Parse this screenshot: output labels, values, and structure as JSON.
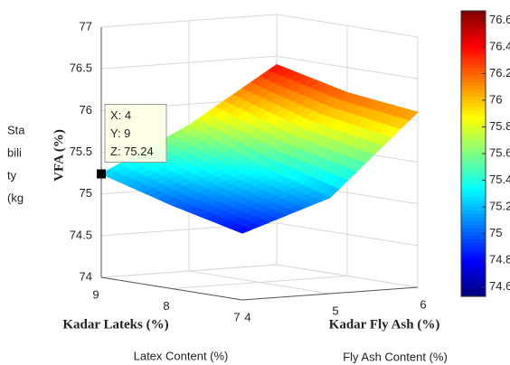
{
  "chart_data": {
    "type": "surface",
    "zlabel": "VFA (%)",
    "ylabel": "Kadar Lateks (%)",
    "xlabel": "Kadar Fly Ash (%)",
    "x": [
      4,
      5,
      6
    ],
    "y": [
      9,
      8,
      7
    ],
    "values": [
      [
        75.24,
        75.75,
        76.4
      ],
      [
        75.0,
        75.4,
        76.2
      ],
      [
        74.8,
        75.15,
        76.1
      ]
    ],
    "xlim": [
      4,
      6
    ],
    "ylim": [
      7,
      9
    ],
    "zlim": [
      74,
      77
    ],
    "xticks": [
      4,
      5,
      6
    ],
    "yticks": [
      9,
      8,
      7
    ],
    "zticks": [
      74,
      74.5,
      75,
      75.5,
      76,
      76.5,
      77
    ],
    "colormap": "jet",
    "clim": [
      74.53,
      76.67
    ],
    "cticks": [
      74.6,
      74.8,
      75,
      75.2,
      75.4,
      75.6,
      75.8,
      76,
      76.2,
      76.4,
      76.6
    ],
    "grid": true,
    "datatip": [
      "X: 4",
      "Y: 9",
      "Z: 75.24"
    ]
  },
  "annotations": {
    "left_text": [
      "Sta",
      "bili",
      "ty",
      "(kg"
    ],
    "x_caption": "Latex Content (%)",
    "y_caption": "Fly Ash Content (%)"
  }
}
